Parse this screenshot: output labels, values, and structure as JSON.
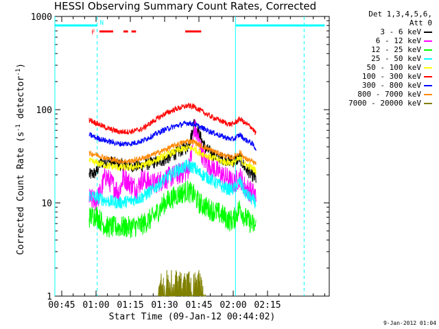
{
  "chart_data": {
    "type": "line",
    "title": "HESSI Observing Summary Count Rates, Corrected",
    "xlabel": "Start Time (09-Jan-12 00:44:02)",
    "ylabel_main": "Corrected Count Rate (s",
    "ylabel_exp1": "-1",
    "ylabel_mid": " detector",
    "ylabel_exp2": "-1",
    "ylabel_end": ")",
    "y_scale": "log",
    "ylim": [
      1,
      1000
    ],
    "xlim_minutes": [
      42,
      162
    ],
    "x_ticks": [
      "00:45",
      "01:00",
      "01:15",
      "01:30",
      "01:45",
      "02:00",
      "02:15"
    ],
    "x_tick_minutes": [
      45,
      60,
      75,
      90,
      105,
      120,
      135
    ],
    "y_ticks": [
      "1",
      "10",
      "100",
      "1000"
    ],
    "y_tick_values": [
      1,
      10,
      100,
      1000
    ],
    "legend_header": [
      "Det 1,3,4,5,6,",
      "Att 0"
    ],
    "series": [
      {
        "name": "3 - 6 keV",
        "color": "#000000",
        "points": [
          [
            57,
            20
          ],
          [
            60,
            21
          ],
          [
            62,
            27
          ],
          [
            65,
            28
          ],
          [
            70,
            26
          ],
          [
            75,
            25
          ],
          [
            80,
            25
          ],
          [
            85,
            27
          ],
          [
            90,
            29
          ],
          [
            95,
            34
          ],
          [
            100,
            40
          ],
          [
            102,
            55
          ],
          [
            103,
            75
          ],
          [
            105,
            55
          ],
          [
            108,
            38
          ],
          [
            112,
            32
          ],
          [
            115,
            30
          ],
          [
            120,
            28
          ],
          [
            123,
            30
          ],
          [
            125,
            24
          ],
          [
            128,
            20
          ],
          [
            130,
            18
          ]
        ]
      },
      {
        "name": "6 - 12 keV",
        "color": "#ff00ff",
        "points": [
          [
            57,
            11
          ],
          [
            60,
            10.5
          ],
          [
            62,
            13
          ],
          [
            64,
            20
          ],
          [
            66,
            17
          ],
          [
            70,
            13
          ],
          [
            72,
            19
          ],
          [
            75,
            16
          ],
          [
            78,
            14
          ],
          [
            80,
            18
          ],
          [
            85,
            16
          ],
          [
            90,
            18
          ],
          [
            95,
            20
          ],
          [
            100,
            22
          ],
          [
            102,
            35
          ],
          [
            103,
            65
          ],
          [
            105,
            45
          ],
          [
            107,
            30
          ],
          [
            110,
            25
          ],
          [
            115,
            20
          ],
          [
            118,
            18
          ],
          [
            120,
            16
          ],
          [
            123,
            19
          ],
          [
            125,
            15
          ],
          [
            128,
            13
          ],
          [
            130,
            12
          ]
        ]
      },
      {
        "name": "12 - 25 keV",
        "color": "#00ff00",
        "points": [
          [
            57,
            7
          ],
          [
            60,
            7.5
          ],
          [
            63,
            6
          ],
          [
            65,
            5.5
          ],
          [
            70,
            5.5
          ],
          [
            75,
            5.5
          ],
          [
            80,
            5.8
          ],
          [
            85,
            7
          ],
          [
            90,
            10
          ],
          [
            95,
            12
          ],
          [
            100,
            13.5
          ],
          [
            103,
            12
          ],
          [
            105,
            10
          ],
          [
            110,
            8.5
          ],
          [
            115,
            7.5
          ],
          [
            118,
            6.5
          ],
          [
            120,
            6.5
          ],
          [
            123,
            9
          ],
          [
            125,
            7
          ],
          [
            128,
            6
          ],
          [
            130,
            5.5
          ]
        ]
      },
      {
        "name": "25 - 50 keV",
        "color": "#00ffff",
        "points": [
          [
            57,
            12
          ],
          [
            60,
            11.5
          ],
          [
            65,
            10.5
          ],
          [
            70,
            10
          ],
          [
            75,
            10.5
          ],
          [
            80,
            11.5
          ],
          [
            85,
            14
          ],
          [
            90,
            18
          ],
          [
            95,
            22
          ],
          [
            100,
            25
          ],
          [
            103,
            24
          ],
          [
            105,
            21
          ],
          [
            110,
            18
          ],
          [
            115,
            15
          ],
          [
            118,
            14
          ],
          [
            120,
            14
          ],
          [
            123,
            17
          ],
          [
            125,
            13
          ],
          [
            128,
            11
          ],
          [
            130,
            10
          ]
        ]
      },
      {
        "name": "50 - 100 keV",
        "color": "#ffff00",
        "points": [
          [
            57,
            28
          ],
          [
            60,
            27
          ],
          [
            65,
            25
          ],
          [
            70,
            24
          ],
          [
            75,
            24
          ],
          [
            80,
            25
          ],
          [
            85,
            28
          ],
          [
            90,
            32
          ],
          [
            95,
            36
          ],
          [
            100,
            39
          ],
          [
            103,
            38
          ],
          [
            105,
            35
          ],
          [
            110,
            31
          ],
          [
            115,
            28
          ],
          [
            118,
            27
          ],
          [
            120,
            27
          ],
          [
            123,
            30
          ],
          [
            125,
            26
          ],
          [
            128,
            24
          ],
          [
            130,
            22
          ]
        ]
      },
      {
        "name": "100 - 300 keV",
        "color": "#ff0000",
        "points": [
          [
            57,
            78
          ],
          [
            60,
            72
          ],
          [
            65,
            63
          ],
          [
            70,
            58
          ],
          [
            75,
            58
          ],
          [
            80,
            62
          ],
          [
            85,
            75
          ],
          [
            90,
            90
          ],
          [
            95,
            102
          ],
          [
            100,
            110
          ],
          [
            103,
            108
          ],
          [
            105,
            100
          ],
          [
            110,
            85
          ],
          [
            115,
            75
          ],
          [
            118,
            70
          ],
          [
            120,
            70
          ],
          [
            123,
            80
          ],
          [
            125,
            72
          ],
          [
            128,
            65
          ],
          [
            130,
            55
          ]
        ]
      },
      {
        "name": "300 - 800 keV",
        "color": "#0000ff",
        "points": [
          [
            57,
            54
          ],
          [
            60,
            50
          ],
          [
            65,
            46
          ],
          [
            70,
            43
          ],
          [
            75,
            43
          ],
          [
            80,
            46
          ],
          [
            85,
            53
          ],
          [
            90,
            61
          ],
          [
            95,
            67
          ],
          [
            100,
            72
          ],
          [
            103,
            70
          ],
          [
            105,
            66
          ],
          [
            110,
            58
          ],
          [
            115,
            52
          ],
          [
            118,
            49
          ],
          [
            120,
            48
          ],
          [
            123,
            54
          ],
          [
            125,
            48
          ],
          [
            128,
            44
          ],
          [
            130,
            38
          ]
        ]
      },
      {
        "name": "800 - 7000 keV",
        "color": "#ff8800",
        "points": [
          [
            57,
            34
          ],
          [
            60,
            33
          ],
          [
            65,
            30
          ],
          [
            70,
            28
          ],
          [
            75,
            28
          ],
          [
            80,
            30
          ],
          [
            85,
            33
          ],
          [
            90,
            37
          ],
          [
            95,
            42
          ],
          [
            100,
            46
          ],
          [
            103,
            45
          ],
          [
            105,
            42
          ],
          [
            110,
            37
          ],
          [
            115,
            33
          ],
          [
            118,
            31
          ],
          [
            120,
            31
          ],
          [
            123,
            35
          ],
          [
            125,
            30
          ],
          [
            128,
            28
          ],
          [
            130,
            26
          ]
        ]
      },
      {
        "name": "7000 - 20000 keV",
        "color": "#808000",
        "points": [
          [
            87,
            1
          ],
          [
            88,
            1.6
          ],
          [
            89,
            1.9
          ],
          [
            90,
            1.3
          ],
          [
            91,
            1.9
          ],
          [
            92,
            1.5
          ],
          [
            93,
            1.9
          ],
          [
            94,
            1.2
          ],
          [
            95,
            1.9
          ],
          [
            96,
            1.6
          ],
          [
            97,
            1.9
          ],
          [
            98,
            1.4
          ],
          [
            99,
            1.9
          ],
          [
            100,
            1.7
          ],
          [
            101,
            1.9
          ],
          [
            102,
            1.3
          ],
          [
            103,
            1.9
          ],
          [
            104,
            1.5
          ],
          [
            105,
            1.9
          ],
          [
            106,
            1.6
          ],
          [
            107,
            1.2
          ],
          [
            108,
            1
          ]
        ]
      }
    ],
    "markers": {
      "cyan_color": "#00ffff",
      "flag_color": "#ff0000",
      "cyan_label": "N",
      "flag_label": "F",
      "night_bars_minutes": [
        [
          42,
          60.5
        ],
        [
          121,
          160
        ]
      ],
      "dashed_lines_minutes": [
        60.5,
        151
      ],
      "solid_lines_minutes": [
        42,
        121
      ],
      "flare_segments_minutes": [
        [
          61.5,
          67.5
        ],
        [
          72,
          74
        ],
        [
          75.5,
          77.5
        ],
        [
          99,
          106
        ]
      ]
    }
  },
  "footer": "9-Jan-2012 01:04"
}
